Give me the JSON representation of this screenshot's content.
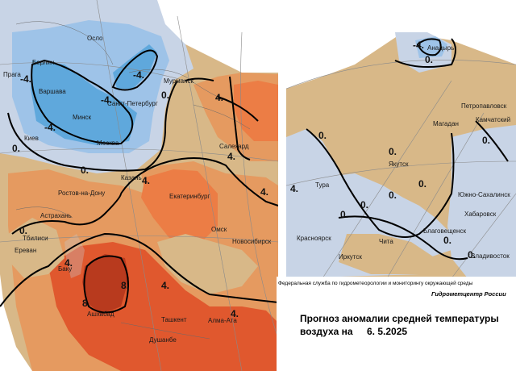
{
  "map": {
    "west_cities": {
      "oslo": "Осло",
      "berlin": "Берлин",
      "praga": "Прага",
      "varshava": "Варшава",
      "minsk": "Минск",
      "kiev": "Киев",
      "moskva": "Москва",
      "spb": "Санкт-Петербург",
      "murmansk": "Мурманск",
      "salekhard": "Салехард",
      "kazan": "Казань",
      "ekaterinburg": "Екатеринбург",
      "rostov": "Ростов-на-Дону",
      "astrakhan": "Астрахань",
      "tbilisi": "Тбилиси",
      "erevan": "Ереван",
      "baku": "Баку",
      "ashkhabad": "Ашхабад",
      "tashkent": "Ташкент",
      "dushanbe": "Душанбе",
      "alma_ata": "Алма-Ата",
      "omsk": "Омск",
      "novosibirsk": "Новосибирск"
    },
    "east_cities": {
      "anadyr": "Анадырь",
      "petropavlovsk": "Петропавловск",
      "kamchatsky": "Камчатский",
      "magadan": "Магадан",
      "yakutsk": "Якутск",
      "tura": "Тура",
      "yuzhno": "Южно-Сахалинск",
      "khabarovsk": "Хабаровск",
      "blagoveshchensk": "Благовещенск",
      "krasnoyarsk": "Красноярск",
      "chita": "Чита",
      "irkutsk": "Иркутск",
      "vladivostok": "Владивосток"
    },
    "isoline_labels": {
      "m4": "-4.",
      "zero": "0.",
      "p4": "4.",
      "p8": "8."
    },
    "colors": {
      "cold_light": "#c8d4e6",
      "cold": "#9ec3e8",
      "cold_dark": "#5fa8dc",
      "neutral": "#d8b888",
      "warm": "#e59a60",
      "warm_more": "#ec7d45",
      "hot": "#e0582e",
      "very_hot": "#b83a1e"
    }
  },
  "legend": {
    "agency": "Федеральная служба по гидрометеорологии и мониторингу окружающей среды",
    "center": "Гидрометцентр России",
    "title_line1": "Прогноз аномалии средней температуры",
    "title_line2": "воздуха на",
    "date": "6. 5.2025"
  }
}
